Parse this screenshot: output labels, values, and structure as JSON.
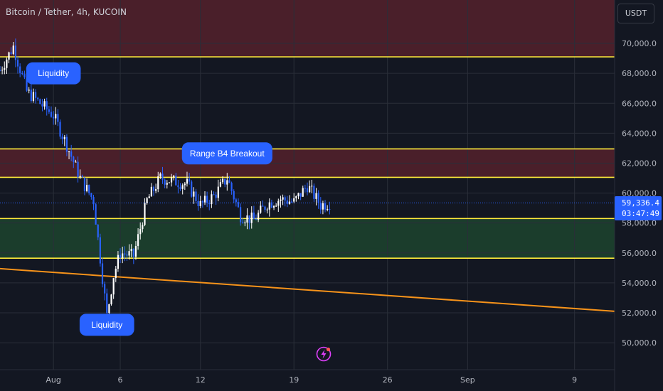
{
  "title": "Bitcoin / Tether, 4h, KUCOIN",
  "currency_button": "USDT",
  "last_price": "59,336.4",
  "countdown": "03:47:49",
  "colors": {
    "background": "#131722",
    "up": "#ffffff",
    "down": "#2962ff",
    "level_line": "#ffeb3b",
    "trend_line": "#f7931a",
    "resistance_zone": "#4a1f2a",
    "support_zone": "#1b3d2c",
    "label_bg": "#2962ff",
    "price_tag": "#2962ff",
    "price_line": "#2962ff"
  },
  "chart_data": {
    "type": "candlestick",
    "x_axis_ticks": [
      "Aug",
      "6",
      "12",
      "19",
      "26",
      "Sep",
      "9"
    ],
    "y_axis_ticks": [
      50000,
      52000,
      54000,
      56000,
      58000,
      60000,
      62000,
      64000,
      66000,
      68000,
      70000
    ],
    "y_tick_labels": [
      "50,000.0",
      "52,000.0",
      "54,000.0",
      "56,000.0",
      "58,000.0",
      "60,000.0",
      "62,000.0",
      "64,000.0",
      "66,000.0",
      "68,000.0",
      "70,000.0"
    ],
    "ylim": [
      48200,
      72900
    ],
    "xlim": [
      "2024-07-28",
      "2024-09-12"
    ],
    "resistance_zone_top": [
      72900,
      69100
    ],
    "resistance_zone_mid": [
      62950,
      61050
    ],
    "support_zone": [
      58300,
      55650
    ],
    "horizontal_levels": [
      69100,
      62950,
      61050,
      58300,
      55650
    ],
    "trendline": [
      {
        "x": "2024-07-28",
        "y": 54950
      },
      {
        "x": "2024-09-12",
        "y": 52100
      }
    ],
    "current_price": 59336.4,
    "annotations": [
      {
        "text": "Liquidity",
        "x": "2024-08-01",
        "y": 68000
      },
      {
        "text": "Range B4 Breakout",
        "x": "2024-08-14",
        "y": 62650
      },
      {
        "text": "Liquidity",
        "x": "2024-08-05",
        "y": 51200
      }
    ],
    "anchors": [
      {
        "x": "2024-07-28",
        "y": 68200
      },
      {
        "x": "2024-07-29",
        "y": 69800
      },
      {
        "x": "2024-07-30",
        "y": 66800
      },
      {
        "x": "2024-07-31",
        "y": 66000
      },
      {
        "x": "2024-08-01",
        "y": 65200
      },
      {
        "x": "2024-08-02",
        "y": 63200
      },
      {
        "x": "2024-08-03",
        "y": 61000
      },
      {
        "x": "2024-08-04",
        "y": 59500
      },
      {
        "x": "2024-08-05",
        "y": 51800
      },
      {
        "x": "2024-08-05T12:00",
        "y": 54500
      },
      {
        "x": "2024-08-06",
        "y": 56000
      },
      {
        "x": "2024-08-07",
        "y": 55800
      },
      {
        "x": "2024-08-08",
        "y": 59500
      },
      {
        "x": "2024-08-09",
        "y": 61000
      },
      {
        "x": "2024-08-10",
        "y": 60800
      },
      {
        "x": "2024-08-11",
        "y": 60600
      },
      {
        "x": "2024-08-12",
        "y": 59200
      },
      {
        "x": "2024-08-13",
        "y": 59800
      },
      {
        "x": "2024-08-14",
        "y": 61000
      },
      {
        "x": "2024-08-15",
        "y": 58500
      },
      {
        "x": "2024-08-16",
        "y": 58200
      },
      {
        "x": "2024-08-17",
        "y": 59300
      },
      {
        "x": "2024-08-18",
        "y": 59600
      },
      {
        "x": "2024-08-19",
        "y": 59400
      },
      {
        "x": "2024-08-20",
        "y": 60500
      },
      {
        "x": "2024-08-21",
        "y": 59200
      },
      {
        "x": "2024-08-21T16:00",
        "y": 59336
      }
    ]
  }
}
